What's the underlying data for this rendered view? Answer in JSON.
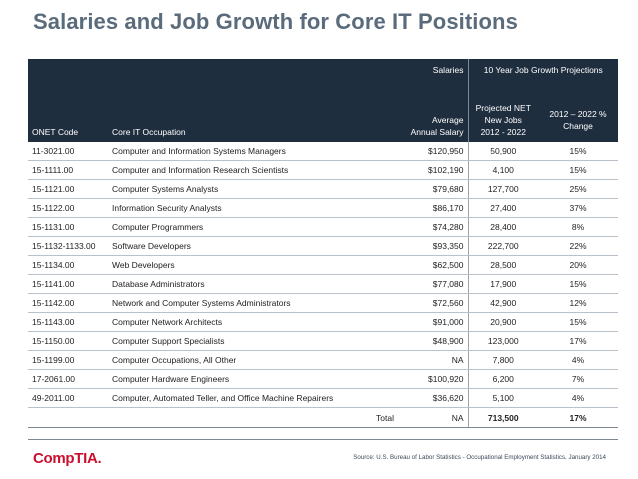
{
  "title": "Salaries and Job Growth for Core IT Positions",
  "header": {
    "group_salaries": "Salaries",
    "group_growth": "10 Year Job Growth Projections",
    "col_code": "ONET Code",
    "col_occupation": "Core IT Occupation",
    "col_salary_line1": "Average",
    "col_salary_line2": "Annual Salary",
    "col_jobs_line1": "Projected NET",
    "col_jobs_line2": "New Jobs",
    "col_jobs_line3": "2012 - 2022",
    "col_change_line1": "2012 – 2022 %",
    "col_change_line2": "Change"
  },
  "rows": [
    {
      "code": "11-3021.00",
      "occupation": "Computer and Information Systems Managers",
      "salary": "$120,950",
      "jobs": "50,900",
      "change": "15%"
    },
    {
      "code": "15-1111.00",
      "occupation": "Computer and Information Research Scientists",
      "salary": "$102,190",
      "jobs": "4,100",
      "change": "15%"
    },
    {
      "code": "15-1121.00",
      "occupation": "Computer Systems Analysts",
      "salary": "$79,680",
      "jobs": "127,700",
      "change": "25%"
    },
    {
      "code": "15-1122.00",
      "occupation": "Information Security Analysts",
      "salary": "$86,170",
      "jobs": "27,400",
      "change": "37%"
    },
    {
      "code": "15-1131.00",
      "occupation": "Computer Programmers",
      "salary": "$74,280",
      "jobs": "28,400",
      "change": "8%"
    },
    {
      "code": "15-1132-1133.00",
      "occupation": "Software Developers",
      "salary": "$93,350",
      "jobs": "222,700",
      "change": "22%"
    },
    {
      "code": "15-1134.00",
      "occupation": "Web Developers",
      "salary": "$62,500",
      "jobs": "28,500",
      "change": "20%"
    },
    {
      "code": "15-1141.00",
      "occupation": "Database Administrators",
      "salary": "$77,080",
      "jobs": "17,900",
      "change": "15%"
    },
    {
      "code": "15-1142.00",
      "occupation": "Network and Computer Systems Administrators",
      "salary": "$72,560",
      "jobs": "42,900",
      "change": "12%"
    },
    {
      "code": "15-1143.00",
      "occupation": "Computer Network Architects",
      "salary": "$91,000",
      "jobs": "20,900",
      "change": "15%"
    },
    {
      "code": "15-1150.00",
      "occupation": "Computer Support Specialists",
      "salary": "$48,900",
      "jobs": "123,000",
      "change": "17%"
    },
    {
      "code": "15-1199.00",
      "occupation": "Computer Occupations, All Other",
      "salary": "NA",
      "jobs": "7,800",
      "change": "4%"
    },
    {
      "code": "17-2061.00",
      "occupation": "Computer Hardware Engineers",
      "salary": "$100,920",
      "jobs": "6,200",
      "change": "7%"
    },
    {
      "code": "49-2011.00",
      "occupation": "Computer, Automated Teller, and Office Machine Repairers",
      "salary": "$36,620",
      "jobs": "5,100",
      "change": "4%"
    }
  ],
  "total": {
    "label": "Total",
    "salary": "NA",
    "jobs": "713,500",
    "change": "17%"
  },
  "footer": {
    "logo": "CompTIA.",
    "source": "Source: U.S. Bureau of Labor Statistics - Occupational Employment Statistics, January 2014"
  }
}
